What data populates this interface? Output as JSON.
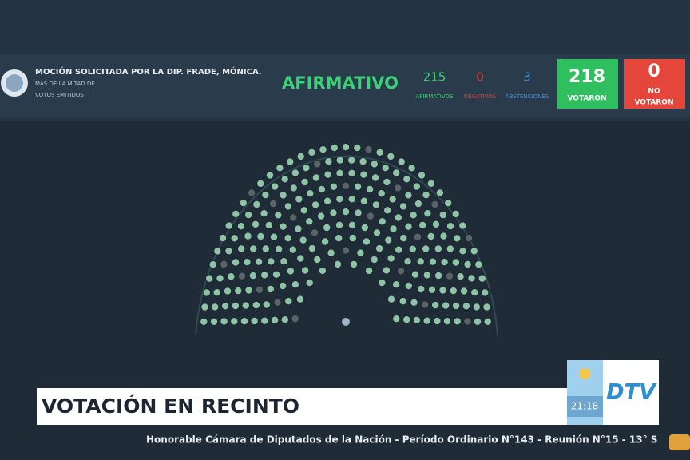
{
  "header": {
    "motion": "MOCIÓN SOLICITADA POR LA DIP. FRADE, MÓNICA.",
    "majority_line1": "MÁS DE LA MITAD DE",
    "majority_line2": "VOTOS EMITIDOS",
    "result": "AFIRMATIVO"
  },
  "tallies": [
    {
      "count": "215",
      "label": "AFIRMATIVOS"
    },
    {
      "count": "0",
      "label": "NEGATIVOS"
    },
    {
      "count": "3",
      "label": "ABSTENCIONES"
    }
  ],
  "boxes": [
    {
      "count": "218",
      "label": "VOTARON"
    },
    {
      "count": "0",
      "label_line1": "NO",
      "label_line2": "VOTARON"
    }
  ],
  "banner": {
    "title": "VOTACIÓN EN RECINTO",
    "time": "21:18",
    "channel": "DTV"
  },
  "ticker": "Honorable Cámara de Diputados de la Nación - Período Ordinario N°143 - Reunión N°15 - 13° S"
}
